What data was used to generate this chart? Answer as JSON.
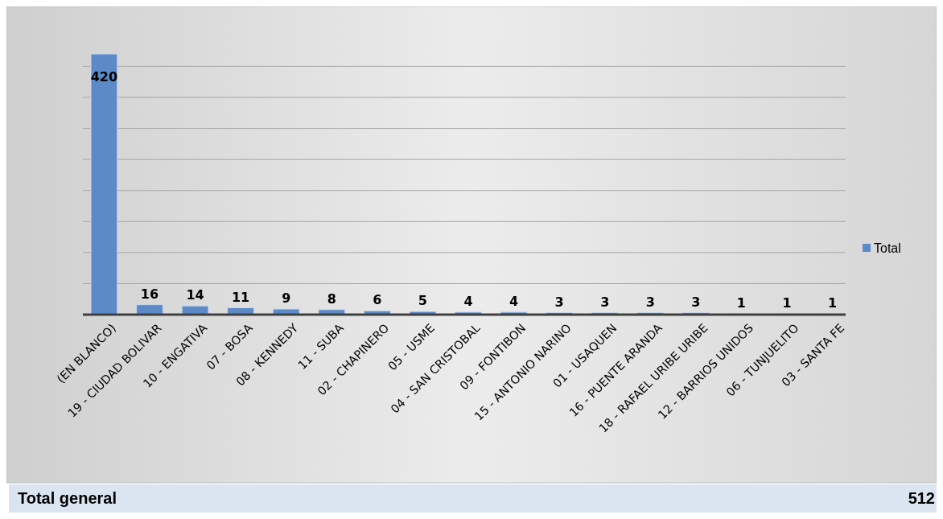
{
  "chart_data": {
    "type": "bar",
    "categories": [
      "(EN BLANCO)",
      "19 - CIUDAD BOLIVAR",
      "10 - ENGATIVA",
      "07 - BOSA",
      "08 - KENNEDY",
      "11 - SUBA",
      "02 - CHAPINERO",
      "05 - USME",
      "04 - SAN CRISTOBAL",
      "09 - FONTIBON",
      "15 - ANTONIO NARINO",
      "01 - USAQUEN",
      "16 - PUENTE ARANDA",
      "18 - RAFAEL URIBE URIBE",
      "12 - BARRIOS UNIDOS",
      "06 - TUNJUELITO",
      "03 - SANTA FE"
    ],
    "series": [
      {
        "name": "Total",
        "color": "#5b8ac6",
        "values": [
          420,
          16,
          14,
          11,
          9,
          8,
          6,
          5,
          4,
          4,
          3,
          3,
          3,
          3,
          1,
          1,
          1
        ]
      }
    ],
    "yticks": [
      {
        "value": 0,
        "label": null
      },
      {
        "value": 50,
        "label": null
      },
      {
        "value": 100,
        "label": null
      },
      {
        "value": 150,
        "label": null
      },
      {
        "value": 200,
        "label": null
      },
      {
        "value": 250,
        "label": null
      },
      {
        "value": 300,
        "label": null
      },
      {
        "value": 350,
        "label": null
      },
      {
        "value": 400,
        "label": null
      }
    ],
    "tick_labels": "x",
    "grid": "y",
    "data_labels": true,
    "legend": "right",
    "annotations": [
      "Total general",
      "512"
    ]
  }
}
